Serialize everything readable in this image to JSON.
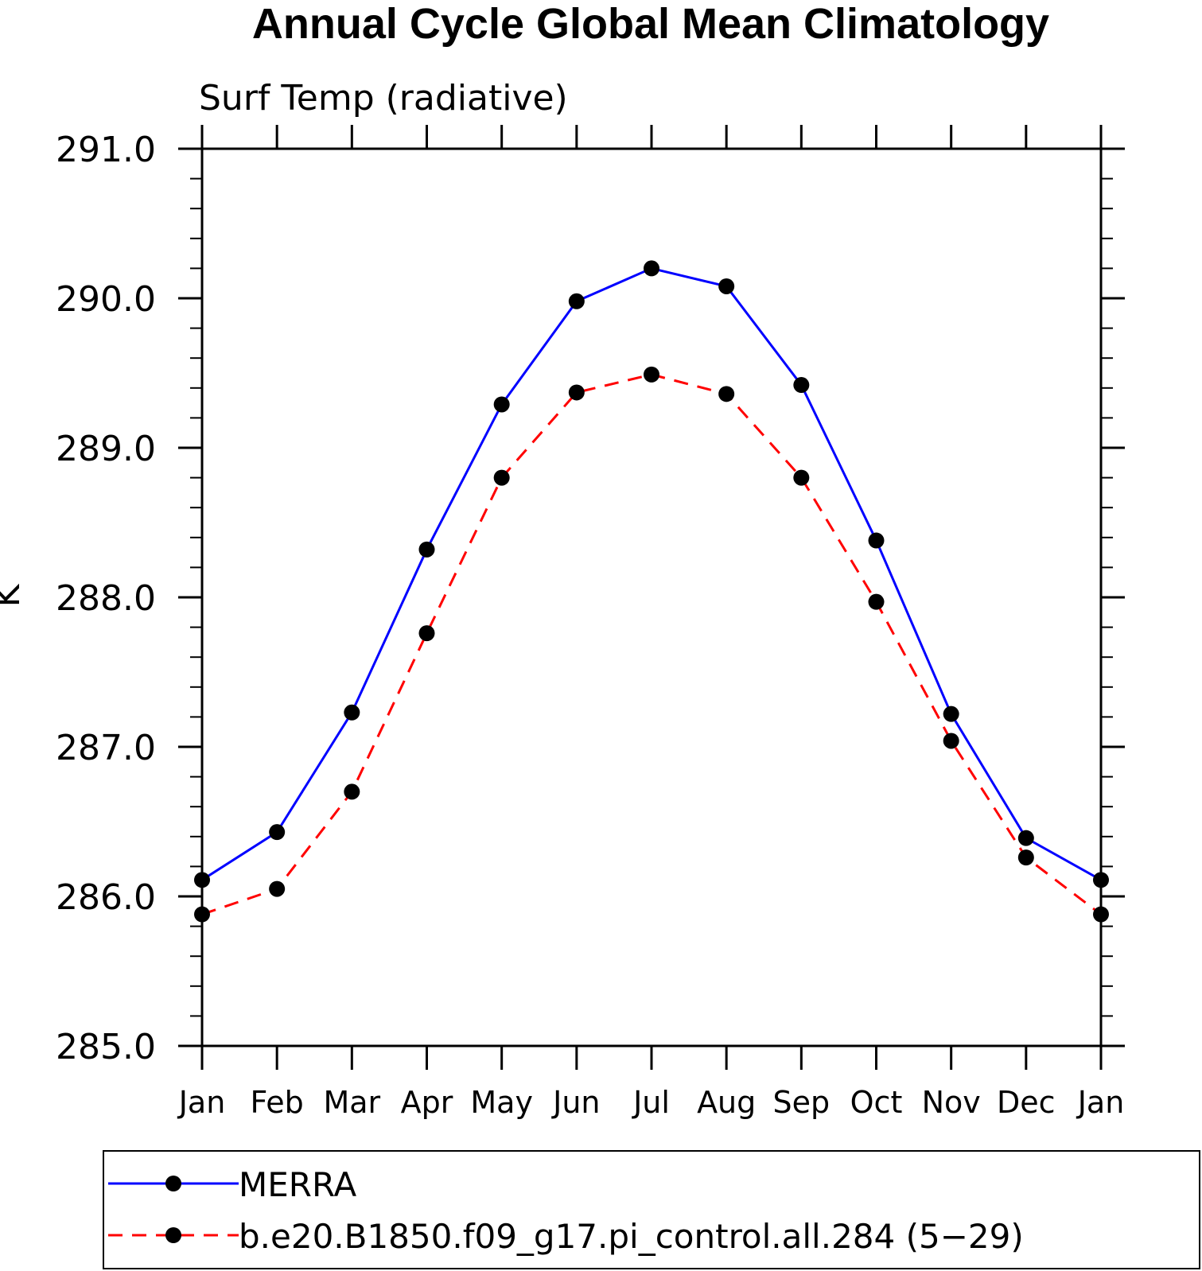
{
  "chart_data": {
    "type": "line",
    "title": "Annual Cycle Global Mean Climatology",
    "subtitle": "Surf Temp (radiative)",
    "ylabel": "K",
    "xlabel": "",
    "categories": [
      "Jan",
      "Feb",
      "Mar",
      "Apr",
      "May",
      "Jun",
      "Jul",
      "Aug",
      "Sep",
      "Oct",
      "Nov",
      "Dec",
      "Jan"
    ],
    "ylim": [
      285.0,
      291.0
    ],
    "yticks": [
      "285.0",
      "286.0",
      "287.0",
      "288.0",
      "289.0",
      "290.0",
      "291.0"
    ],
    "grid": false,
    "legend_position": "bottom",
    "series": [
      {
        "name": "MERRA",
        "color": "#0000ff",
        "dash": "solid",
        "values": [
          286.11,
          286.43,
          287.23,
          288.32,
          289.29,
          289.98,
          290.2,
          290.08,
          289.42,
          288.38,
          287.22,
          286.39,
          286.11
        ]
      },
      {
        "name": "b.e20.B1850.f09_g17.pi_control.all.284 (5−29)",
        "color": "#ff0000",
        "dash": "dashed",
        "values": [
          285.88,
          286.05,
          286.7,
          287.76,
          288.8,
          289.37,
          289.49,
          289.36,
          288.8,
          287.97,
          287.04,
          286.26,
          285.88
        ]
      }
    ]
  }
}
